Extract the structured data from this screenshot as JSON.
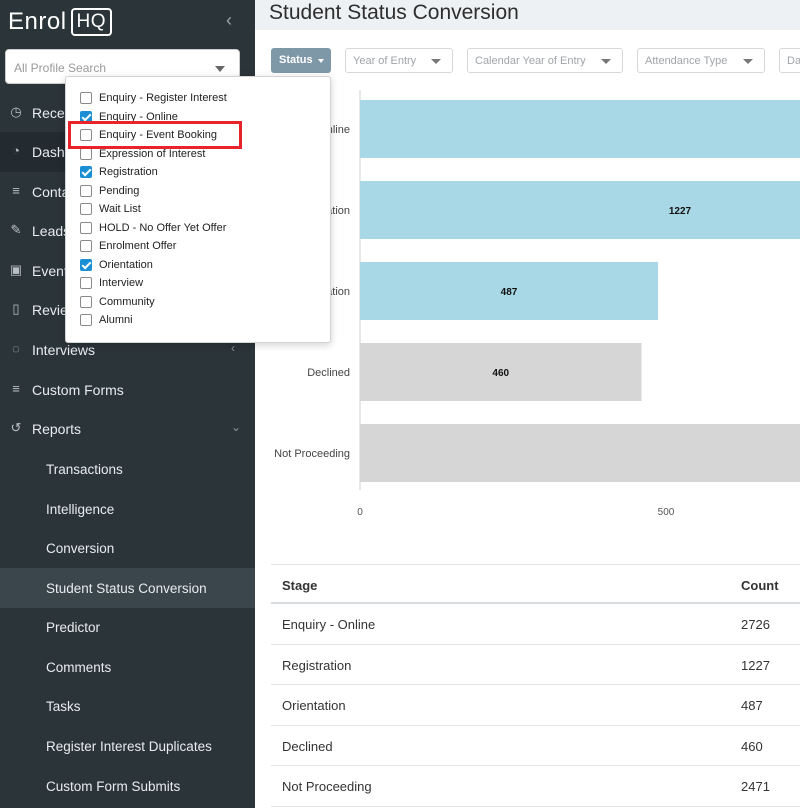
{
  "app": {
    "logo_text": "Enrol",
    "logo_badge": "HQ"
  },
  "sidebar": {
    "search_placeholder": "All Profile Search",
    "items": [
      {
        "label": "Recent",
        "icon": "clock-icon"
      },
      {
        "label": "Dashboard",
        "icon": "dashboard-icon"
      },
      {
        "label": "Contacts",
        "icon": "list-icon"
      },
      {
        "label": "Leads",
        "icon": "edit-icon"
      },
      {
        "label": "Events",
        "icon": "calendar-icon"
      },
      {
        "label": "Reviews",
        "icon": "document-icon"
      },
      {
        "label": "Interviews",
        "icon": "chat-icon"
      },
      {
        "label": "Custom Forms",
        "icon": "list-icon"
      },
      {
        "label": "Reports",
        "icon": "history-icon"
      }
    ],
    "report_subitems": [
      "Transactions",
      "Intelligence",
      "Conversion",
      "Student Status Conversion",
      "Predictor",
      "Comments",
      "Tasks",
      "Register Interest Duplicates",
      "Custom Form Submits"
    ]
  },
  "main": {
    "title": "Student Status Conversion",
    "filters": {
      "status": "Status",
      "year_of_entry": "Year of Entry",
      "calendar_year": "Calendar Year of Entry",
      "attendance_type": "Attendance Type",
      "date": "Da"
    }
  },
  "dropdown": {
    "options": [
      {
        "label": "Enquiry - Register Interest",
        "checked": false
      },
      {
        "label": "Enquiry - Online",
        "checked": true
      },
      {
        "label": "Enquiry - Event Booking",
        "checked": false
      },
      {
        "label": "Expression of Interest",
        "checked": false
      },
      {
        "label": "Registration",
        "checked": true
      },
      {
        "label": "Pending",
        "checked": false
      },
      {
        "label": "Wait List",
        "checked": false
      },
      {
        "label": "HOLD - No Offer Yet Offer",
        "checked": false
      },
      {
        "label": "Enrolment Offer",
        "checked": false
      },
      {
        "label": "Orientation",
        "checked": true
      },
      {
        "label": "Interview",
        "checked": false
      },
      {
        "label": "Community",
        "checked": false
      },
      {
        "label": "Alumni",
        "checked": false
      }
    ]
  },
  "chart_data": {
    "type": "bar",
    "orientation": "horizontal",
    "categories": [
      "Enquiry - Online",
      "Registration",
      "Orientation",
      "Declined",
      "Not Proceeding"
    ],
    "visible_category_labels": [
      "nline",
      "ation",
      "ation",
      "Declined",
      "Not Proceeding"
    ],
    "values": [
      2726,
      1227,
      487,
      460,
      2471
    ],
    "data_labels": [
      "",
      "1227",
      "487",
      "460",
      ""
    ],
    "colors": [
      "#a8d8e6",
      "#a8d8e6",
      "#a8d8e6",
      "#d6d6d6",
      "#d6d6d6"
    ],
    "x_ticks": [
      "0",
      "500"
    ]
  },
  "table": {
    "headers": [
      "Stage",
      "Count"
    ],
    "rows": [
      [
        "Enquiry - Online",
        "2726"
      ],
      [
        "Registration",
        "1227"
      ],
      [
        "Orientation",
        "487"
      ],
      [
        "Declined",
        "460"
      ],
      [
        "Not Proceeding",
        "2471"
      ]
    ]
  }
}
